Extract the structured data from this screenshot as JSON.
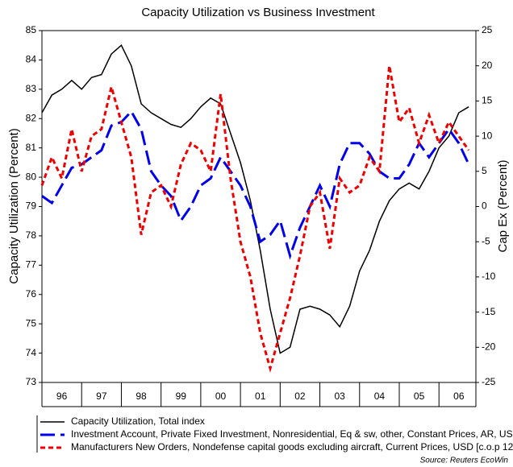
{
  "chart_data": {
    "type": "line",
    "title": "Capacity Utilization vs Business Investment",
    "ylabel": "Capacity Utilization (Percent)",
    "y2label": "Cap Ex (Percent)",
    "source": "Source: Reuters EcoWin",
    "x": [
      1996,
      1996.25,
      1996.5,
      1996.75,
      1997,
      1997.25,
      1997.5,
      1997.75,
      1998,
      1998.25,
      1998.5,
      1998.75,
      1999,
      1999.25,
      1999.5,
      1999.75,
      2000,
      2000.25,
      2000.5,
      2000.75,
      2001,
      2001.25,
      2001.5,
      2001.75,
      2002,
      2002.25,
      2002.5,
      2002.75,
      2003,
      2003.25,
      2003.5,
      2003.75,
      2004,
      2004.25,
      2004.5,
      2004.75,
      2005,
      2005.25,
      2005.5,
      2005.75,
      2006,
      2006.25,
      2006.5,
      2006.75
    ],
    "xlim": [
      1996,
      2006.93
    ],
    "xticks": [
      {
        "value": 1996.5,
        "label": "96"
      },
      {
        "value": 1997.5,
        "label": "97"
      },
      {
        "value": 1998.5,
        "label": "98"
      },
      {
        "value": 1999.5,
        "label": "99"
      },
      {
        "value": 2000.5,
        "label": "00"
      },
      {
        "value": 2001.5,
        "label": "01"
      },
      {
        "value": 2002.5,
        "label": "02"
      },
      {
        "value": 2003.5,
        "label": "03"
      },
      {
        "value": 2004.5,
        "label": "04"
      },
      {
        "value": 2005.5,
        "label": "05"
      },
      {
        "value": 2006.5,
        "label": "06"
      }
    ],
    "ylim": [
      73,
      85
    ],
    "yticks": [
      73,
      74,
      75,
      76,
      77,
      78,
      79,
      80,
      81,
      82,
      83,
      84,
      85
    ],
    "y2lim": [
      -25,
      25
    ],
    "y2ticks": [
      -25,
      -20,
      -15,
      -10,
      -5,
      0,
      5,
      10,
      15,
      20,
      25
    ],
    "series": [
      {
        "name": "Capacity Utilization, Total index",
        "color": "#000000",
        "dash": "none",
        "values": [
          82.2,
          82.8,
          83.0,
          83.3,
          83.0,
          83.4,
          83.5,
          84.2,
          84.5,
          83.8,
          82.5,
          82.2,
          82.0,
          81.8,
          81.7,
          82.0,
          82.4,
          82.7,
          82.5,
          81.5,
          80.5,
          79.2,
          77.5,
          75.5,
          74.0,
          74.2,
          75.5,
          75.6,
          75.5,
          75.3,
          74.9,
          75.6,
          76.8,
          77.5,
          78.5,
          79.2,
          79.6,
          79.8,
          79.6,
          80.2,
          81.0,
          81.4,
          82.2,
          82.4
        ]
      },
      {
        "name": "Investment Account, Private Fixed Investment, Nonresidential, Eq & sw, other, Constant Prices, AR, USD",
        "color": "#0000ee",
        "dash": "18,7",
        "axis": "y2",
        "values": [
          1.5,
          0.5,
          3,
          5.5,
          6,
          7,
          8,
          11.5,
          12,
          13.5,
          11,
          5,
          3,
          1.5,
          -2,
          0,
          3,
          4,
          7,
          5,
          3,
          0,
          -5,
          -4,
          -2,
          -7,
          -3,
          0,
          3,
          0,
          6,
          9,
          9,
          7.5,
          5,
          4,
          4,
          6,
          9,
          7,
          9,
          11,
          9,
          6
        ]
      },
      {
        "name": "Manufacturers New Orders, Nondefense capital goods excluding aircraft, Current Prices, USD [c.o.p 12",
        "color": "#ee0000",
        "dash": "6,4",
        "axis": "y2",
        "values": [
          3,
          7,
          4,
          11,
          5,
          10,
          11,
          17,
          12,
          7,
          -4,
          2,
          3,
          0,
          6,
          9,
          8,
          5,
          16,
          4,
          -5,
          -10,
          -18,
          -23,
          -18,
          -13,
          -7,
          0,
          2,
          -6,
          4,
          2,
          3,
          7,
          5,
          20,
          12,
          14,
          9,
          13,
          9,
          12,
          10,
          8
        ]
      }
    ]
  }
}
